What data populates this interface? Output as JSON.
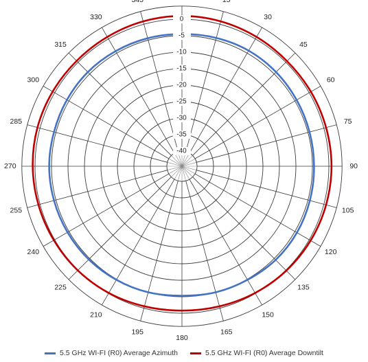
{
  "chart_data": {
    "type": "radar",
    "angle_labels": [
      "0",
      "15",
      "30",
      "45",
      "60",
      "75",
      "90",
      "105",
      "120",
      "135",
      "150",
      "165",
      "180",
      "195",
      "210",
      "225",
      "240",
      "255",
      "270",
      "285",
      "300",
      "315",
      "330",
      "345"
    ],
    "radial_tick_labels": [
      "0",
      "-5",
      "-10",
      "-15",
      "-20",
      "-25",
      "-30",
      "-35",
      "-40"
    ],
    "radial_range": [
      -40,
      4
    ],
    "grid": true,
    "legend_position": "bottom",
    "series": [
      {
        "name": "5.5 GHz WI-FI (R0) Average Azimuth",
        "color": "#4472c4",
        "angles": [
          0,
          15,
          30,
          45,
          60,
          75,
          90,
          105,
          120,
          135,
          150,
          165,
          180,
          195,
          210,
          225,
          240,
          255,
          270,
          285,
          300,
          315,
          330,
          345
        ],
        "values": [
          -4.5,
          -4.3,
          -4.1,
          -4.2,
          -4.4,
          -4.5,
          -4.5,
          -4.4,
          -4.3,
          -4.4,
          -4.8,
          -5.0,
          -5.3,
          -5.0,
          -4.8,
          -4.6,
          -4.5,
          -4.4,
          -4.3,
          -4.4,
          -4.3,
          -4.2,
          -4.3,
          -4.4
        ]
      },
      {
        "name": "5.5 GHz WI-FI (R0) Average Downtilt",
        "color": "#c00000",
        "angles": [
          0,
          15,
          30,
          45,
          60,
          75,
          90,
          105,
          120,
          135,
          150,
          165,
          180,
          195,
          210,
          225,
          240,
          255,
          270,
          285,
          300,
          315,
          330,
          345
        ],
        "values": [
          1.0,
          0.9,
          0.7,
          0.5,
          0.6,
          0.7,
          0.8,
          0.7,
          0.5,
          0.2,
          -0.2,
          -0.6,
          -0.8,
          -0.6,
          -0.2,
          0.1,
          0.3,
          0.5,
          0.7,
          0.8,
          0.7,
          0.6,
          0.7,
          0.9
        ]
      }
    ]
  }
}
